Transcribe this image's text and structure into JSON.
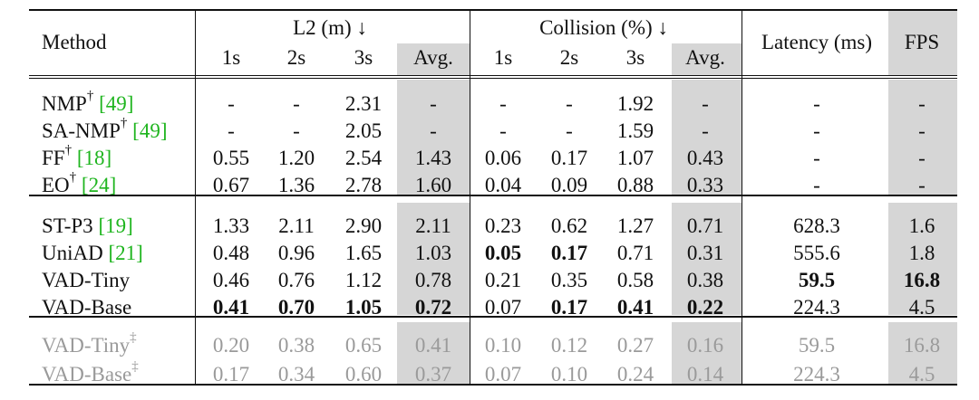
{
  "header": {
    "method": "Method",
    "l2_group": "L2 (m) ↓",
    "collision_group": "Collision (%) ↓",
    "latency": "Latency (ms)",
    "fps": "FPS",
    "subcols": [
      "1s",
      "2s",
      "3s",
      "Avg.",
      "1s",
      "2s",
      "3s",
      "Avg."
    ]
  },
  "rows": [
    {
      "method": "NMP",
      "sup": "†",
      "ref": "[49]",
      "cells": [
        "-",
        "-",
        "2.31",
        "-",
        "-",
        "-",
        "1.92",
        "-"
      ],
      "latency": "-",
      "fps": "-",
      "bold": [],
      "gray": false
    },
    {
      "method": "SA-NMP",
      "sup": "†",
      "ref": "[49]",
      "cells": [
        "-",
        "-",
        "2.05",
        "-",
        "-",
        "-",
        "1.59",
        "-"
      ],
      "latency": "-",
      "fps": "-",
      "bold": [],
      "gray": false
    },
    {
      "method": "FF",
      "sup": "†",
      "ref": "[18]",
      "cells": [
        "0.55",
        "1.20",
        "2.54",
        "1.43",
        "0.06",
        "0.17",
        "1.07",
        "0.43"
      ],
      "latency": "-",
      "fps": "-",
      "bold": [],
      "gray": false
    },
    {
      "method": "EO",
      "sup": "†",
      "ref": "[24]",
      "cells": [
        "0.67",
        "1.36",
        "2.78",
        "1.60",
        "0.04",
        "0.09",
        "0.88",
        "0.33"
      ],
      "latency": "-",
      "fps": "-",
      "bold": [],
      "gray": false
    },
    {
      "method": "ST-P3",
      "sup": "",
      "ref": "[19]",
      "cells": [
        "1.33",
        "2.11",
        "2.90",
        "2.11",
        "0.23",
        "0.62",
        "1.27",
        "0.71"
      ],
      "latency": "628.3",
      "fps": "1.6",
      "bold": [],
      "gray": false
    },
    {
      "method": "UniAD",
      "sup": "",
      "ref": "[21]",
      "cells": [
        "0.48",
        "0.96",
        "1.65",
        "1.03",
        "0.05",
        "0.17",
        "0.71",
        "0.31"
      ],
      "latency": "555.6",
      "fps": "1.8",
      "bold": [
        4,
        5
      ],
      "gray": false
    },
    {
      "method": "VAD-Tiny",
      "sup": "",
      "ref": "",
      "cells": [
        "0.46",
        "0.76",
        "1.12",
        "0.78",
        "0.21",
        "0.35",
        "0.58",
        "0.38"
      ],
      "latency": "59.5",
      "fps": "16.8",
      "bold": [
        8,
        9
      ],
      "gray": false
    },
    {
      "method": "VAD-Base",
      "sup": "",
      "ref": "",
      "cells": [
        "0.41",
        "0.70",
        "1.05",
        "0.72",
        "0.07",
        "0.17",
        "0.41",
        "0.22"
      ],
      "latency": "224.3",
      "fps": "4.5",
      "bold": [
        0,
        1,
        2,
        3,
        5,
        6,
        7
      ],
      "gray": false
    },
    {
      "method": "VAD-Tiny",
      "sup": "‡",
      "ref": "",
      "cells": [
        "0.20",
        "0.38",
        "0.65",
        "0.41",
        "0.10",
        "0.12",
        "0.27",
        "0.16"
      ],
      "latency": "59.5",
      "fps": "16.8",
      "bold": [],
      "gray": true
    },
    {
      "method": "VAD-Base",
      "sup": "‡",
      "ref": "",
      "cells": [
        "0.17",
        "0.34",
        "0.60",
        "0.37",
        "0.07",
        "0.10",
        "0.24",
        "0.14"
      ],
      "latency": "224.3",
      "fps": "4.5",
      "bold": [],
      "gray": true
    }
  ]
}
